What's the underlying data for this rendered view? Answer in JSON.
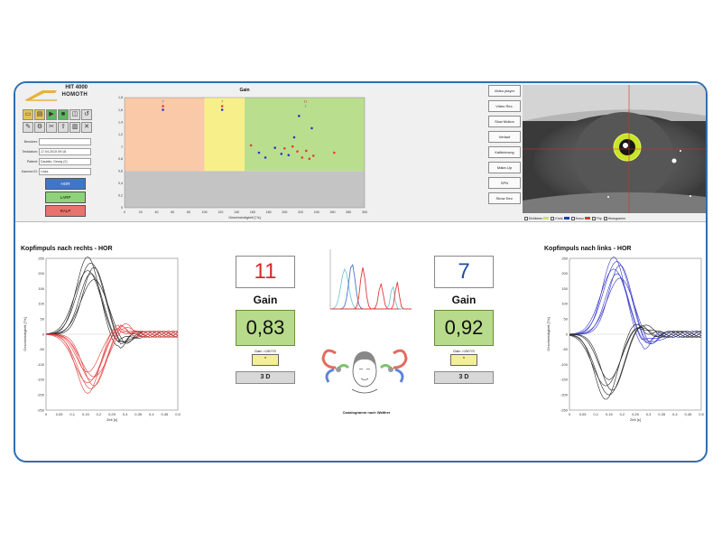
{
  "logo": {
    "line1": "HIT 4000",
    "line2": "HOMOTH"
  },
  "toolbar": {
    "icons": [
      "folder-icon",
      "doc-icon",
      "play-icon",
      "save-icon",
      "disk-icon",
      "undo-icon",
      "edit-icon",
      "settings-icon",
      "tools-icon",
      "export-icon",
      "chart-icon",
      "close-icon"
    ]
  },
  "fields": [
    {
      "label": "Benutzer:",
      "value": ""
    },
    {
      "label": "Testdatum:",
      "value": "17.04.2015 09:18"
    },
    {
      "label": "Patient:",
      "value": "Daubitz, Georg (2)"
    },
    {
      "label": "Kamera ID:",
      "value": "Links"
    }
  ],
  "modes": [
    "HOR",
    "LARP",
    "RALP"
  ],
  "side_buttons": [
    "Video player",
    "Video Rec.",
    "Slow Motion",
    "Verlauf",
    "Kalibrierung",
    "Make-Up",
    "SPN",
    "Show Dev."
  ],
  "eye_checkboxes": [
    {
      "label": "Einfärben",
      "color": "#c5e07a"
    },
    {
      "label": "Kreis",
      "color": "#1a3fa8"
    },
    {
      "label": "Kreuz",
      "color": "#e83030"
    },
    {
      "label": "Flip",
      "color": "#dddddd"
    },
    {
      "label": "Histogramm",
      "color": ""
    }
  ],
  "colors": {
    "right_series": "#e23b3b",
    "left_series": "#3232c8",
    "black_series": "#222222",
    "gain_box": "#b7db8a"
  },
  "left_stats": {
    "count": "11",
    "gain_label": "Gain",
    "gain_value": "0,83",
    "gain_sub": "Gain >150°/S",
    "gain_sub_value": "*",
    "btn_3d": "3 D"
  },
  "right_stats": {
    "count": "7",
    "gain_label": "Gain",
    "gain_value": "0,92",
    "gain_sub": "Gain >150°/S",
    "gain_sub_value": "*",
    "btn_3d": "3 D"
  },
  "caption": "Canalogramm nach Walther",
  "chart_data": [
    {
      "type": "scatter",
      "title": "Gain",
      "xlabel": "Geschwindigkeit [°/s]",
      "ylabel": "",
      "xlim": [
        0,
        300
      ],
      "ylim": [
        0,
        1.8
      ],
      "xticks": [
        0,
        20,
        40,
        60,
        80,
        100,
        120,
        140,
        160,
        180,
        200,
        220,
        240,
        260,
        280,
        300
      ],
      "yticks": [
        0,
        0.2,
        0.4,
        0.6,
        0.8,
        1,
        1.2,
        1.4,
        1.6,
        1.8
      ],
      "grid": false,
      "bands": [
        {
          "x0": 0,
          "x1": 100,
          "y0": 0.6,
          "y1": 1.8,
          "color": "#f9c9a8"
        },
        {
          "x0": 100,
          "x1": 150,
          "y0": 0.6,
          "y1": 1.8,
          "color": "#f7f08a"
        },
        {
          "x0": 150,
          "x1": 300,
          "y0": 0.6,
          "y1": 1.8,
          "color": "#b9df8e"
        },
        {
          "x0": 0,
          "x1": 300,
          "y0": 0,
          "y1": 0.6,
          "color": "#c4c4c4"
        }
      ],
      "annotations": [
        {
          "x": 48,
          "y": 1.72,
          "text": "7"
        },
        {
          "x": 122,
          "y": 1.72,
          "text": "7"
        },
        {
          "x": 226,
          "y": 1.72,
          "text": "11"
        },
        {
          "x": 226,
          "y": 1.64,
          "text": "7"
        }
      ],
      "series": [
        {
          "color": "#e23b3b",
          "points": [
            [
              48,
              1.66
            ],
            [
              122,
              1.66
            ],
            [
              158,
              1.02
            ],
            [
              200,
              0.97
            ],
            [
              210,
              1.0
            ],
            [
              216,
              0.92
            ],
            [
              222,
              0.82
            ],
            [
              227,
              0.93
            ],
            [
              231,
              0.8
            ],
            [
              236,
              0.85
            ],
            [
              262,
              0.9
            ]
          ]
        },
        {
          "color": "#3232c8",
          "points": [
            [
              48,
              1.6
            ],
            [
              122,
              1.6
            ],
            [
              168,
              0.9
            ],
            [
              176,
              0.82
            ],
            [
              188,
              0.98
            ],
            [
              196,
              0.88
            ],
            [
              212,
              1.15
            ],
            [
              218,
              1.5
            ],
            [
              234,
              1.3
            ],
            [
              205,
              0.86
            ]
          ]
        }
      ]
    },
    {
      "type": "line",
      "title": "Kopfimpuls nach rechts - HOR",
      "xlabel": "Zeit [s]",
      "ylabel": "Geschwindigkeit [°/s]",
      "xlim": [
        0,
        0.5
      ],
      "ylim": [
        -250,
        250
      ],
      "xticks": [
        "0",
        "0,05",
        "0,1",
        "0,15",
        "0,2",
        "0,25",
        "0,3",
        "0,35",
        "0,4",
        "0,45",
        "0,5"
      ],
      "yticks": [
        250,
        200,
        150,
        100,
        50,
        0,
        -50,
        -100,
        -150,
        -200,
        -250
      ],
      "series": [
        {
          "color": "#222222",
          "peaks": [
            255,
            235,
            220,
            210,
            200,
            180
          ],
          "peak_t": 0.17
        },
        {
          "color": "#e23b3b",
          "peaks": [
            -195,
            -180,
            -170,
            -160,
            -150,
            -140,
            -125
          ],
          "peak_t": 0.17
        }
      ]
    },
    {
      "type": "line",
      "title": "Kopfimpuls nach links - HOR",
      "xlabel": "Zeit [s]",
      "ylabel": "Geschwindigkeit [°/s]",
      "xlim": [
        0,
        0.5
      ],
      "ylim": [
        -250,
        250
      ],
      "xticks": [
        "0",
        "0,05",
        "0,1",
        "0,15",
        "0,2",
        "0,25",
        "0,3",
        "0,35",
        "0,4",
        "0,45",
        "0,5"
      ],
      "yticks": [
        250,
        200,
        150,
        100,
        50,
        0,
        -50,
        -100,
        -150,
        -200,
        -250
      ],
      "series": [
        {
          "color": "#3232c8",
          "peaks": [
            255,
            240,
            228,
            215,
            200,
            185
          ],
          "peak_t": 0.18
        },
        {
          "color": "#222222",
          "peaks": [
            -215,
            -200,
            -185,
            -170,
            -150
          ],
          "peak_t": 0.15
        }
      ]
    },
    {
      "type": "line",
      "title": "",
      "series": [
        {
          "color": "#7ac7d6"
        },
        {
          "color": "#e23b3b"
        },
        {
          "color": "#4a72c8"
        }
      ]
    }
  ]
}
